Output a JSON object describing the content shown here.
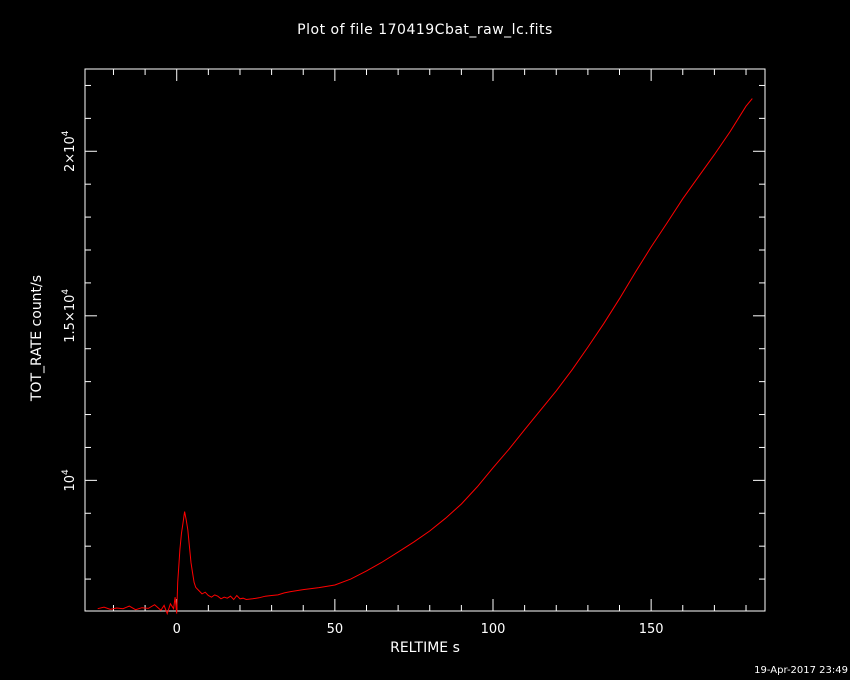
{
  "colors": {
    "background": "#000000",
    "axes": "#ffffff",
    "series": "#ff0000"
  },
  "footer": {
    "timestamp": "19-Apr-2017 23:49"
  },
  "chart_data": {
    "type": "line",
    "title": "Plot of file 170419Cbat_raw_lc.fits",
    "xlabel": "RELTIME  s",
    "ylabel": "TOT_RATE  count/s",
    "xlim": [
      -29,
      186
    ],
    "ylim": [
      6030,
      22500
    ],
    "xticks": [
      {
        "value": 0,
        "label": "0"
      },
      {
        "value": 50,
        "label": "50"
      },
      {
        "value": 100,
        "label": "100"
      },
      {
        "value": 150,
        "label": "150"
      }
    ],
    "yticks": [
      {
        "value": 10000,
        "base": "10",
        "exp": "4"
      },
      {
        "value": 15000,
        "base": "1.5×10",
        "exp": "4"
      },
      {
        "value": 20000,
        "base": "2×10",
        "exp": "4"
      }
    ],
    "series": [
      {
        "color": "#ff0000",
        "x": [
          -25,
          -23,
          -21,
          -19,
          -17,
          -15,
          -13,
          -11,
          -9,
          -7,
          -5,
          -4,
          -3,
          -2,
          -1,
          -0.5,
          0,
          0.3,
          0.6,
          1,
          1.5,
          2,
          2.5,
          3,
          3.5,
          4,
          4.5,
          5,
          5.5,
          6,
          6.5,
          7,
          8,
          9,
          10,
          11,
          12,
          13,
          14,
          15,
          16,
          17,
          18,
          19,
          20,
          21,
          22,
          24,
          26,
          28,
          30,
          32,
          34,
          36,
          38,
          40,
          45,
          50,
          55,
          60,
          65,
          70,
          75,
          80,
          85,
          90,
          95,
          100,
          105,
          110,
          115,
          120,
          125,
          130,
          135,
          140,
          145,
          150,
          155,
          160,
          165,
          170,
          175,
          180,
          182
        ],
        "y": [
          6100,
          6150,
          6080,
          6120,
          6100,
          6180,
          6070,
          6130,
          6110,
          6220,
          6050,
          6200,
          5950,
          6250,
          6100,
          6450,
          5950,
          6900,
          7300,
          7900,
          8400,
          8700,
          9050,
          8800,
          8500,
          8000,
          7500,
          7200,
          6900,
          6750,
          6700,
          6650,
          6550,
          6600,
          6500,
          6450,
          6520,
          6480,
          6400,
          6450,
          6420,
          6480,
          6380,
          6500,
          6400,
          6420,
          6380,
          6400,
          6430,
          6480,
          6500,
          6520,
          6580,
          6620,
          6650,
          6680,
          6740,
          6820,
          7000,
          7250,
          7520,
          7820,
          8130,
          8460,
          8850,
          9280,
          9800,
          10380,
          10940,
          11540,
          12130,
          12720,
          13360,
          14050,
          14760,
          15520,
          16320,
          17090,
          17820,
          18560,
          19230,
          19900,
          20600,
          21370,
          21600
        ]
      }
    ]
  }
}
